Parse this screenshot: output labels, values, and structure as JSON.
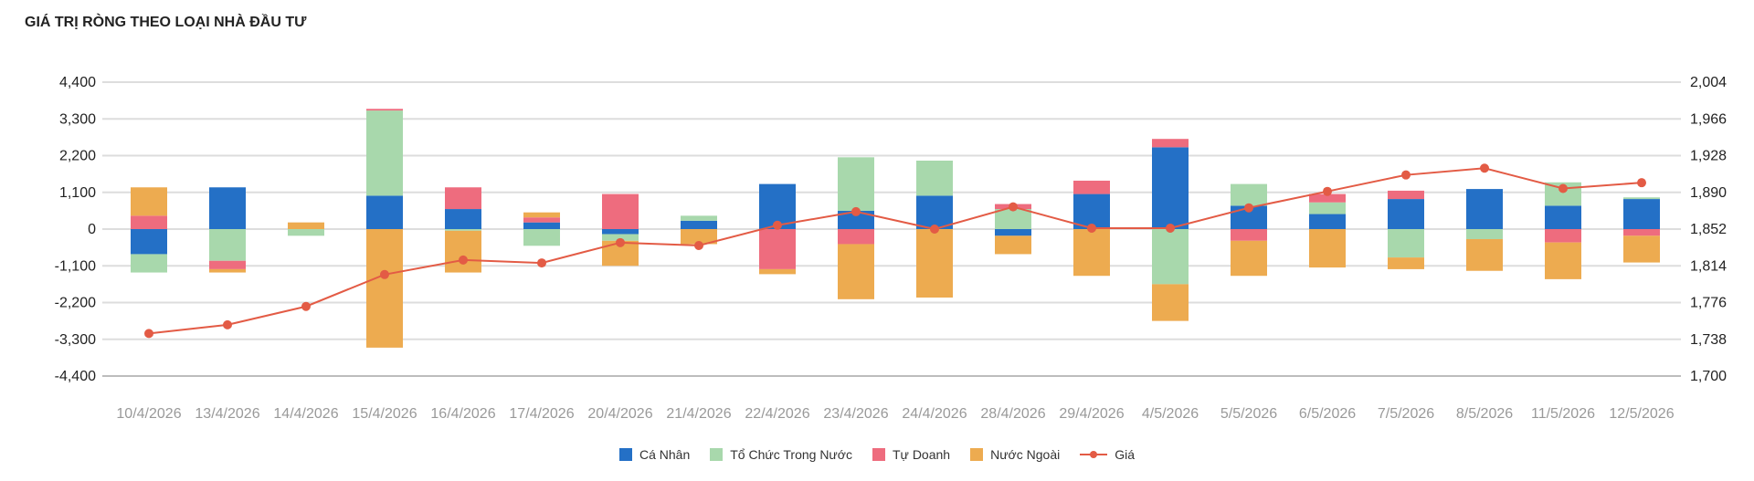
{
  "title": "GIÁ TRỊ RÒNG THEO LOẠI NHÀ ĐẦU TƯ",
  "chart_data": {
    "type": "bar",
    "stacked": true,
    "categories": [
      "10/4/2026",
      "13/4/2026",
      "14/4/2026",
      "15/4/2026",
      "16/4/2026",
      "17/4/2026",
      "20/4/2026",
      "21/4/2026",
      "22/4/2026",
      "23/4/2026",
      "24/4/2026",
      "28/4/2026",
      "29/4/2026",
      "4/5/2026",
      "5/5/2026",
      "6/5/2026",
      "7/5/2026",
      "8/5/2026",
      "11/5/2026",
      "12/5/2026"
    ],
    "y_left": {
      "ticks": [
        "4,400",
        "3,300",
        "2,200",
        "1,100",
        "0",
        "-1,100",
        "-2,200",
        "-3,300",
        "-4,400"
      ],
      "ylim": [
        -4400,
        4400
      ]
    },
    "y_right": {
      "ticks": [
        "2,004",
        "1,966",
        "1,928",
        "1,890",
        "1,852",
        "1,814",
        "1,776",
        "1,738",
        "1,700"
      ],
      "ylim": [
        1700,
        2004
      ]
    },
    "grid": true,
    "legend_position": "bottom-center",
    "series": [
      {
        "name": "Cá Nhân",
        "color": "#2470c6",
        "values": [
          -750,
          1250,
          0,
          1000,
          600,
          200,
          -150,
          250,
          1350,
          550,
          1000,
          -200,
          1050,
          2450,
          700,
          450,
          900,
          1200,
          700,
          900
        ]
      },
      {
        "name": "Tổ Chức Trong Nước",
        "color": "#a8d8ac",
        "values": [
          -550,
          -950,
          -200,
          2550,
          -50,
          -500,
          -200,
          150,
          0,
          1600,
          1050,
          600,
          0,
          -1650,
          650,
          350,
          -850,
          -300,
          700,
          50
        ]
      },
      {
        "name": "Tự Doanh",
        "color": "#ee6c7e",
        "values": [
          400,
          -250,
          0,
          50,
          650,
          150,
          1050,
          0,
          -1200,
          -450,
          0,
          150,
          400,
          250,
          -350,
          250,
          250,
          0,
          -400,
          -200
        ]
      },
      {
        "name": "Nước Ngoài",
        "color": "#edab50",
        "values": [
          850,
          -100,
          200,
          -3550,
          -1250,
          150,
          -750,
          -450,
          -150,
          -1650,
          -2050,
          -550,
          -1400,
          -1100,
          -1050,
          -1150,
          -350,
          -950,
          -1100,
          -800
        ]
      }
    ],
    "line": {
      "name": "Giá",
      "color": "#e35b45",
      "values": [
        1744,
        1753,
        1772,
        1805,
        1820,
        1817,
        1838,
        1835,
        1856,
        1870,
        1852,
        1875,
        1853,
        1853,
        1874,
        1891,
        1908,
        1915,
        1894,
        1900
      ]
    }
  }
}
